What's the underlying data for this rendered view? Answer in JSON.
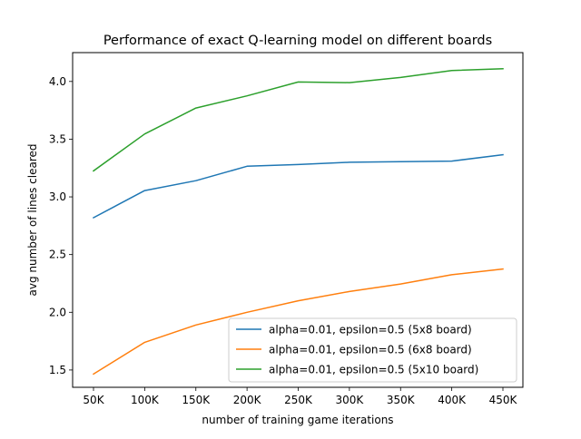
{
  "chart_data": {
    "type": "line",
    "title": "Performance of exact Q-learning model on different boards",
    "xlabel": "number of training game iterations",
    "ylabel": "avg number of lines cleared",
    "categories": [
      "50K",
      "100K",
      "150K",
      "200K",
      "250K",
      "300K",
      "350K",
      "400K",
      "450K"
    ],
    "ylim": [
      1.35,
      4.25
    ],
    "yticks": [
      "1.5",
      "2.0",
      "2.5",
      "3.0",
      "3.5",
      "4.0"
    ],
    "grid": false,
    "legend_position": "lower-right",
    "series": [
      {
        "name": "alpha=0.01, epsilon=0.5 (5x8 board)",
        "color": "#1f77b4",
        "values": [
          2.82,
          3.055,
          3.14,
          3.265,
          3.28,
          3.3,
          3.305,
          3.31,
          3.365
        ]
      },
      {
        "name": "alpha=0.01, epsilon=0.5 (6x8 board)",
        "color": "#ff7f0e",
        "values": [
          1.465,
          1.74,
          1.89,
          2.0,
          2.1,
          2.18,
          2.245,
          2.325,
          2.375
        ]
      },
      {
        "name": "alpha=0.01, epsilon=0.5 (5x10 board)",
        "color": "#2ca02c",
        "values": [
          3.225,
          3.545,
          3.77,
          3.875,
          3.995,
          3.99,
          4.035,
          4.095,
          4.11
        ]
      }
    ]
  }
}
